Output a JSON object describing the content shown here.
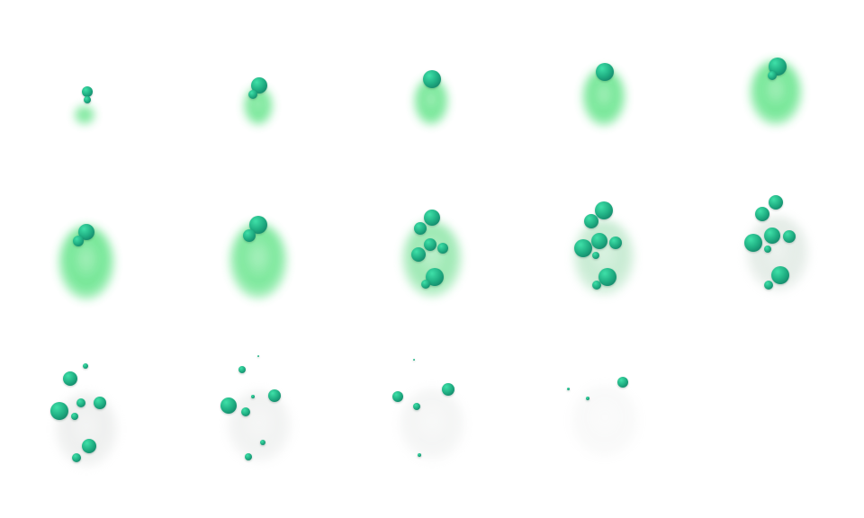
{
  "sprite_sheet": {
    "frame_count": 14,
    "columns": 5,
    "rows": 3,
    "colors": {
      "background": "#ffffff",
      "smoke_green": "#4fe07a",
      "smoke_gray": "#cfd3d1",
      "bubble_light": "#3fe0a8",
      "bubble_mid": "#1fae82",
      "bubble_dark": "#0f6f5c"
    }
  }
}
